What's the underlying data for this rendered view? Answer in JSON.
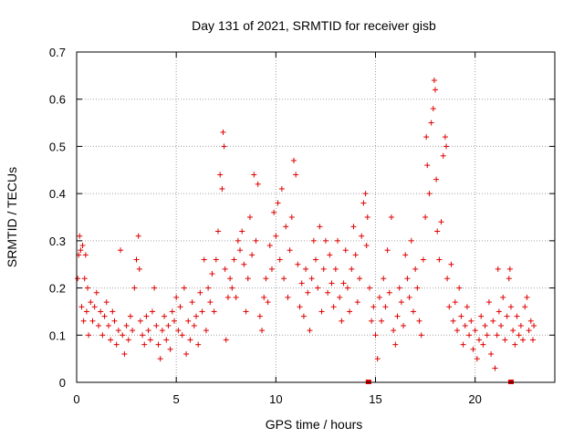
{
  "chart_data": {
    "type": "scatter",
    "title": "Day 131 of 2021, SRMTID for receiver gisb",
    "xlabel": "GPS time / hours",
    "ylabel": "SRMTID / TECUs",
    "xlim": [
      0,
      24
    ],
    "ylim": [
      0,
      0.7
    ],
    "xticks": [
      0,
      5,
      10,
      15,
      20
    ],
    "xtick_labels": [
      "0",
      "5",
      "10",
      "15",
      "20"
    ],
    "yticks": [
      0,
      0.1,
      0.2,
      0.3,
      0.4,
      0.5,
      0.6,
      0.7
    ],
    "ytick_labels": [
      "0",
      "0.1",
      "0.2",
      "0.3",
      "0.4",
      "0.5",
      "0.6",
      "0.7"
    ],
    "grid": true,
    "marker": "+",
    "color": "#e00000",
    "data_gap_markers_x": [
      14.65,
      21.8
    ],
    "series": [
      {
        "name": "SRMTID",
        "points": [
          [
            0.05,
            0.22
          ],
          [
            0.1,
            0.27
          ],
          [
            0.15,
            0.31
          ],
          [
            0.2,
            0.28
          ],
          [
            0.25,
            0.16
          ],
          [
            0.3,
            0.29
          ],
          [
            0.35,
            0.13
          ],
          [
            0.4,
            0.22
          ],
          [
            0.45,
            0.27
          ],
          [
            0.5,
            0.15
          ],
          [
            0.55,
            0.2
          ],
          [
            0.6,
            0.1
          ],
          [
            0.7,
            0.17
          ],
          [
            0.8,
            0.13
          ],
          [
            0.9,
            0.16
          ],
          [
            1.0,
            0.19
          ],
          [
            1.1,
            0.12
          ],
          [
            1.2,
            0.15
          ],
          [
            1.3,
            0.1
          ],
          [
            1.4,
            0.14
          ],
          [
            1.5,
            0.17
          ],
          [
            1.6,
            0.12
          ],
          [
            1.7,
            0.09
          ],
          [
            1.8,
            0.15
          ],
          [
            1.9,
            0.13
          ],
          [
            2.0,
            0.08
          ],
          [
            2.1,
            0.11
          ],
          [
            2.2,
            0.28
          ],
          [
            2.3,
            0.1
          ],
          [
            2.4,
            0.06
          ],
          [
            2.5,
            0.12
          ],
          [
            2.6,
            0.09
          ],
          [
            2.7,
            0.14
          ],
          [
            2.8,
            0.11
          ],
          [
            2.9,
            0.2
          ],
          [
            3.0,
            0.26
          ],
          [
            3.1,
            0.31
          ],
          [
            3.15,
            0.24
          ],
          [
            3.2,
            0.13
          ],
          [
            3.3,
            0.1
          ],
          [
            3.4,
            0.08
          ],
          [
            3.5,
            0.14
          ],
          [
            3.6,
            0.11
          ],
          [
            3.7,
            0.09
          ],
          [
            3.8,
            0.15
          ],
          [
            3.9,
            0.2
          ],
          [
            4.0,
            0.12
          ],
          [
            4.1,
            0.08
          ],
          [
            4.2,
            0.05
          ],
          [
            4.3,
            0.11
          ],
          [
            4.4,
            0.14
          ],
          [
            4.5,
            0.09
          ],
          [
            4.6,
            0.12
          ],
          [
            4.7,
            0.07
          ],
          [
            4.8,
            0.15
          ],
          [
            4.9,
            0.13
          ],
          [
            5.0,
            0.18
          ],
          [
            5.1,
            0.11
          ],
          [
            5.2,
            0.16
          ],
          [
            5.3,
            0.1
          ],
          [
            5.4,
            0.2
          ],
          [
            5.5,
            0.06
          ],
          [
            5.6,
            0.13
          ],
          [
            5.7,
            0.09
          ],
          [
            5.8,
            0.17
          ],
          [
            5.9,
            0.12
          ],
          [
            6.0,
            0.14
          ],
          [
            6.1,
            0.08
          ],
          [
            6.2,
            0.19
          ],
          [
            6.3,
            0.15
          ],
          [
            6.4,
            0.26
          ],
          [
            6.5,
            0.11
          ],
          [
            6.6,
            0.2
          ],
          [
            6.7,
            0.17
          ],
          [
            6.8,
            0.23
          ],
          [
            6.9,
            0.15
          ],
          [
            7.0,
            0.26
          ],
          [
            7.1,
            0.32
          ],
          [
            7.2,
            0.44
          ],
          [
            7.3,
            0.41
          ],
          [
            7.35,
            0.53
          ],
          [
            7.4,
            0.5
          ],
          [
            7.45,
            0.24
          ],
          [
            7.5,
            0.09
          ],
          [
            7.6,
            0.18
          ],
          [
            7.7,
            0.22
          ],
          [
            7.8,
            0.2
          ],
          [
            7.9,
            0.26
          ],
          [
            8.0,
            0.18
          ],
          [
            8.1,
            0.3
          ],
          [
            8.2,
            0.28
          ],
          [
            8.3,
            0.32
          ],
          [
            8.4,
            0.25
          ],
          [
            8.5,
            0.15
          ],
          [
            8.6,
            0.22
          ],
          [
            8.7,
            0.35
          ],
          [
            8.8,
            0.27
          ],
          [
            8.9,
            0.44
          ],
          [
            9.0,
            0.3
          ],
          [
            9.1,
            0.42
          ],
          [
            9.2,
            0.14
          ],
          [
            9.3,
            0.11
          ],
          [
            9.4,
            0.18
          ],
          [
            9.5,
            0.22
          ],
          [
            9.6,
            0.17
          ],
          [
            9.7,
            0.29
          ],
          [
            9.8,
            0.24
          ],
          [
            9.9,
            0.36
          ],
          [
            10.0,
            0.31
          ],
          [
            10.1,
            0.38
          ],
          [
            10.2,
            0.26
          ],
          [
            10.3,
            0.41
          ],
          [
            10.4,
            0.22
          ],
          [
            10.5,
            0.33
          ],
          [
            10.6,
            0.18
          ],
          [
            10.7,
            0.28
          ],
          [
            10.8,
            0.35
          ],
          [
            10.9,
            0.47
          ],
          [
            11.0,
            0.44
          ],
          [
            11.1,
            0.25
          ],
          [
            11.2,
            0.16
          ],
          [
            11.3,
            0.21
          ],
          [
            11.4,
            0.14
          ],
          [
            11.5,
            0.24
          ],
          [
            11.6,
            0.19
          ],
          [
            11.7,
            0.11
          ],
          [
            11.8,
            0.22
          ],
          [
            11.9,
            0.3
          ],
          [
            12.0,
            0.26
          ],
          [
            12.1,
            0.2
          ],
          [
            12.2,
            0.33
          ],
          [
            12.3,
            0.15
          ],
          [
            12.4,
            0.24
          ],
          [
            12.5,
            0.3
          ],
          [
            12.6,
            0.19
          ],
          [
            12.7,
            0.27
          ],
          [
            12.8,
            0.21
          ],
          [
            12.9,
            0.16
          ],
          [
            13.0,
            0.24
          ],
          [
            13.1,
            0.3
          ],
          [
            13.2,
            0.18
          ],
          [
            13.3,
            0.13
          ],
          [
            13.4,
            0.21
          ],
          [
            13.5,
            0.28
          ],
          [
            13.6,
            0.2
          ],
          [
            13.7,
            0.15
          ],
          [
            13.8,
            0.24
          ],
          [
            13.9,
            0.33
          ],
          [
            14.0,
            0.27
          ],
          [
            14.1,
            0.17
          ],
          [
            14.2,
            0.22
          ],
          [
            14.3,
            0.31
          ],
          [
            14.4,
            0.38
          ],
          [
            14.5,
            0.4
          ],
          [
            14.55,
            0.29
          ],
          [
            14.6,
            0.35
          ],
          [
            14.7,
            0.2
          ],
          [
            14.8,
            0.13
          ],
          [
            14.9,
            0.16
          ],
          [
            15.0,
            0.1
          ],
          [
            15.1,
            0.05
          ],
          [
            15.2,
            0.18
          ],
          [
            15.3,
            0.13
          ],
          [
            15.4,
            0.22
          ],
          [
            15.5,
            0.16
          ],
          [
            15.6,
            0.28
          ],
          [
            15.7,
            0.19
          ],
          [
            15.8,
            0.35
          ],
          [
            15.9,
            0.11
          ],
          [
            16.0,
            0.08
          ],
          [
            16.1,
            0.14
          ],
          [
            16.2,
            0.2
          ],
          [
            16.3,
            0.17
          ],
          [
            16.4,
            0.12
          ],
          [
            16.5,
            0.27
          ],
          [
            16.6,
            0.22
          ],
          [
            16.7,
            0.18
          ],
          [
            16.8,
            0.3
          ],
          [
            16.9,
            0.15
          ],
          [
            17.0,
            0.24
          ],
          [
            17.1,
            0.2
          ],
          [
            17.2,
            0.13
          ],
          [
            17.3,
            0.1
          ],
          [
            17.4,
            0.26
          ],
          [
            17.5,
            0.35
          ],
          [
            17.55,
            0.52
          ],
          [
            17.6,
            0.46
          ],
          [
            17.7,
            0.4
          ],
          [
            17.8,
            0.55
          ],
          [
            17.9,
            0.58
          ],
          [
            17.95,
            0.64
          ],
          [
            18.0,
            0.62
          ],
          [
            18.05,
            0.43
          ],
          [
            18.1,
            0.32
          ],
          [
            18.2,
            0.26
          ],
          [
            18.3,
            0.34
          ],
          [
            18.4,
            0.48
          ],
          [
            18.5,
            0.52
          ],
          [
            18.55,
            0.5
          ],
          [
            18.6,
            0.22
          ],
          [
            18.7,
            0.16
          ],
          [
            18.8,
            0.25
          ],
          [
            18.9,
            0.13
          ],
          [
            19.0,
            0.17
          ],
          [
            19.1,
            0.11
          ],
          [
            19.2,
            0.2
          ],
          [
            19.3,
            0.14
          ],
          [
            19.4,
            0.08
          ],
          [
            19.5,
            0.12
          ],
          [
            19.6,
            0.16
          ],
          [
            19.7,
            0.1
          ],
          [
            19.8,
            0.13
          ],
          [
            19.9,
            0.07
          ],
          [
            20.0,
            0.11
          ],
          [
            20.1,
            0.05
          ],
          [
            20.2,
            0.09
          ],
          [
            20.3,
            0.14
          ],
          [
            20.4,
            0.08
          ],
          [
            20.5,
            0.12
          ],
          [
            20.6,
            0.1
          ],
          [
            20.7,
            0.17
          ],
          [
            20.8,
            0.06
          ],
          [
            20.9,
            0.13
          ],
          [
            21.0,
            0.03
          ],
          [
            21.1,
            0.1
          ],
          [
            21.15,
            0.24
          ],
          [
            21.2,
            0.15
          ],
          [
            21.3,
            0.12
          ],
          [
            21.4,
            0.18
          ],
          [
            21.5,
            0.09
          ],
          [
            21.6,
            0.14
          ],
          [
            21.7,
            0.22
          ],
          [
            21.75,
            0.24
          ],
          [
            21.8,
            0.16
          ],
          [
            21.9,
            0.11
          ],
          [
            22.0,
            0.08
          ],
          [
            22.1,
            0.14
          ],
          [
            22.2,
            0.1
          ],
          [
            22.3,
            0.12
          ],
          [
            22.4,
            0.09
          ],
          [
            22.5,
            0.16
          ],
          [
            22.6,
            0.18
          ],
          [
            22.7,
            0.11
          ],
          [
            22.8,
            0.13
          ],
          [
            22.9,
            0.09
          ],
          [
            22.95,
            0.12
          ]
        ]
      }
    ]
  }
}
